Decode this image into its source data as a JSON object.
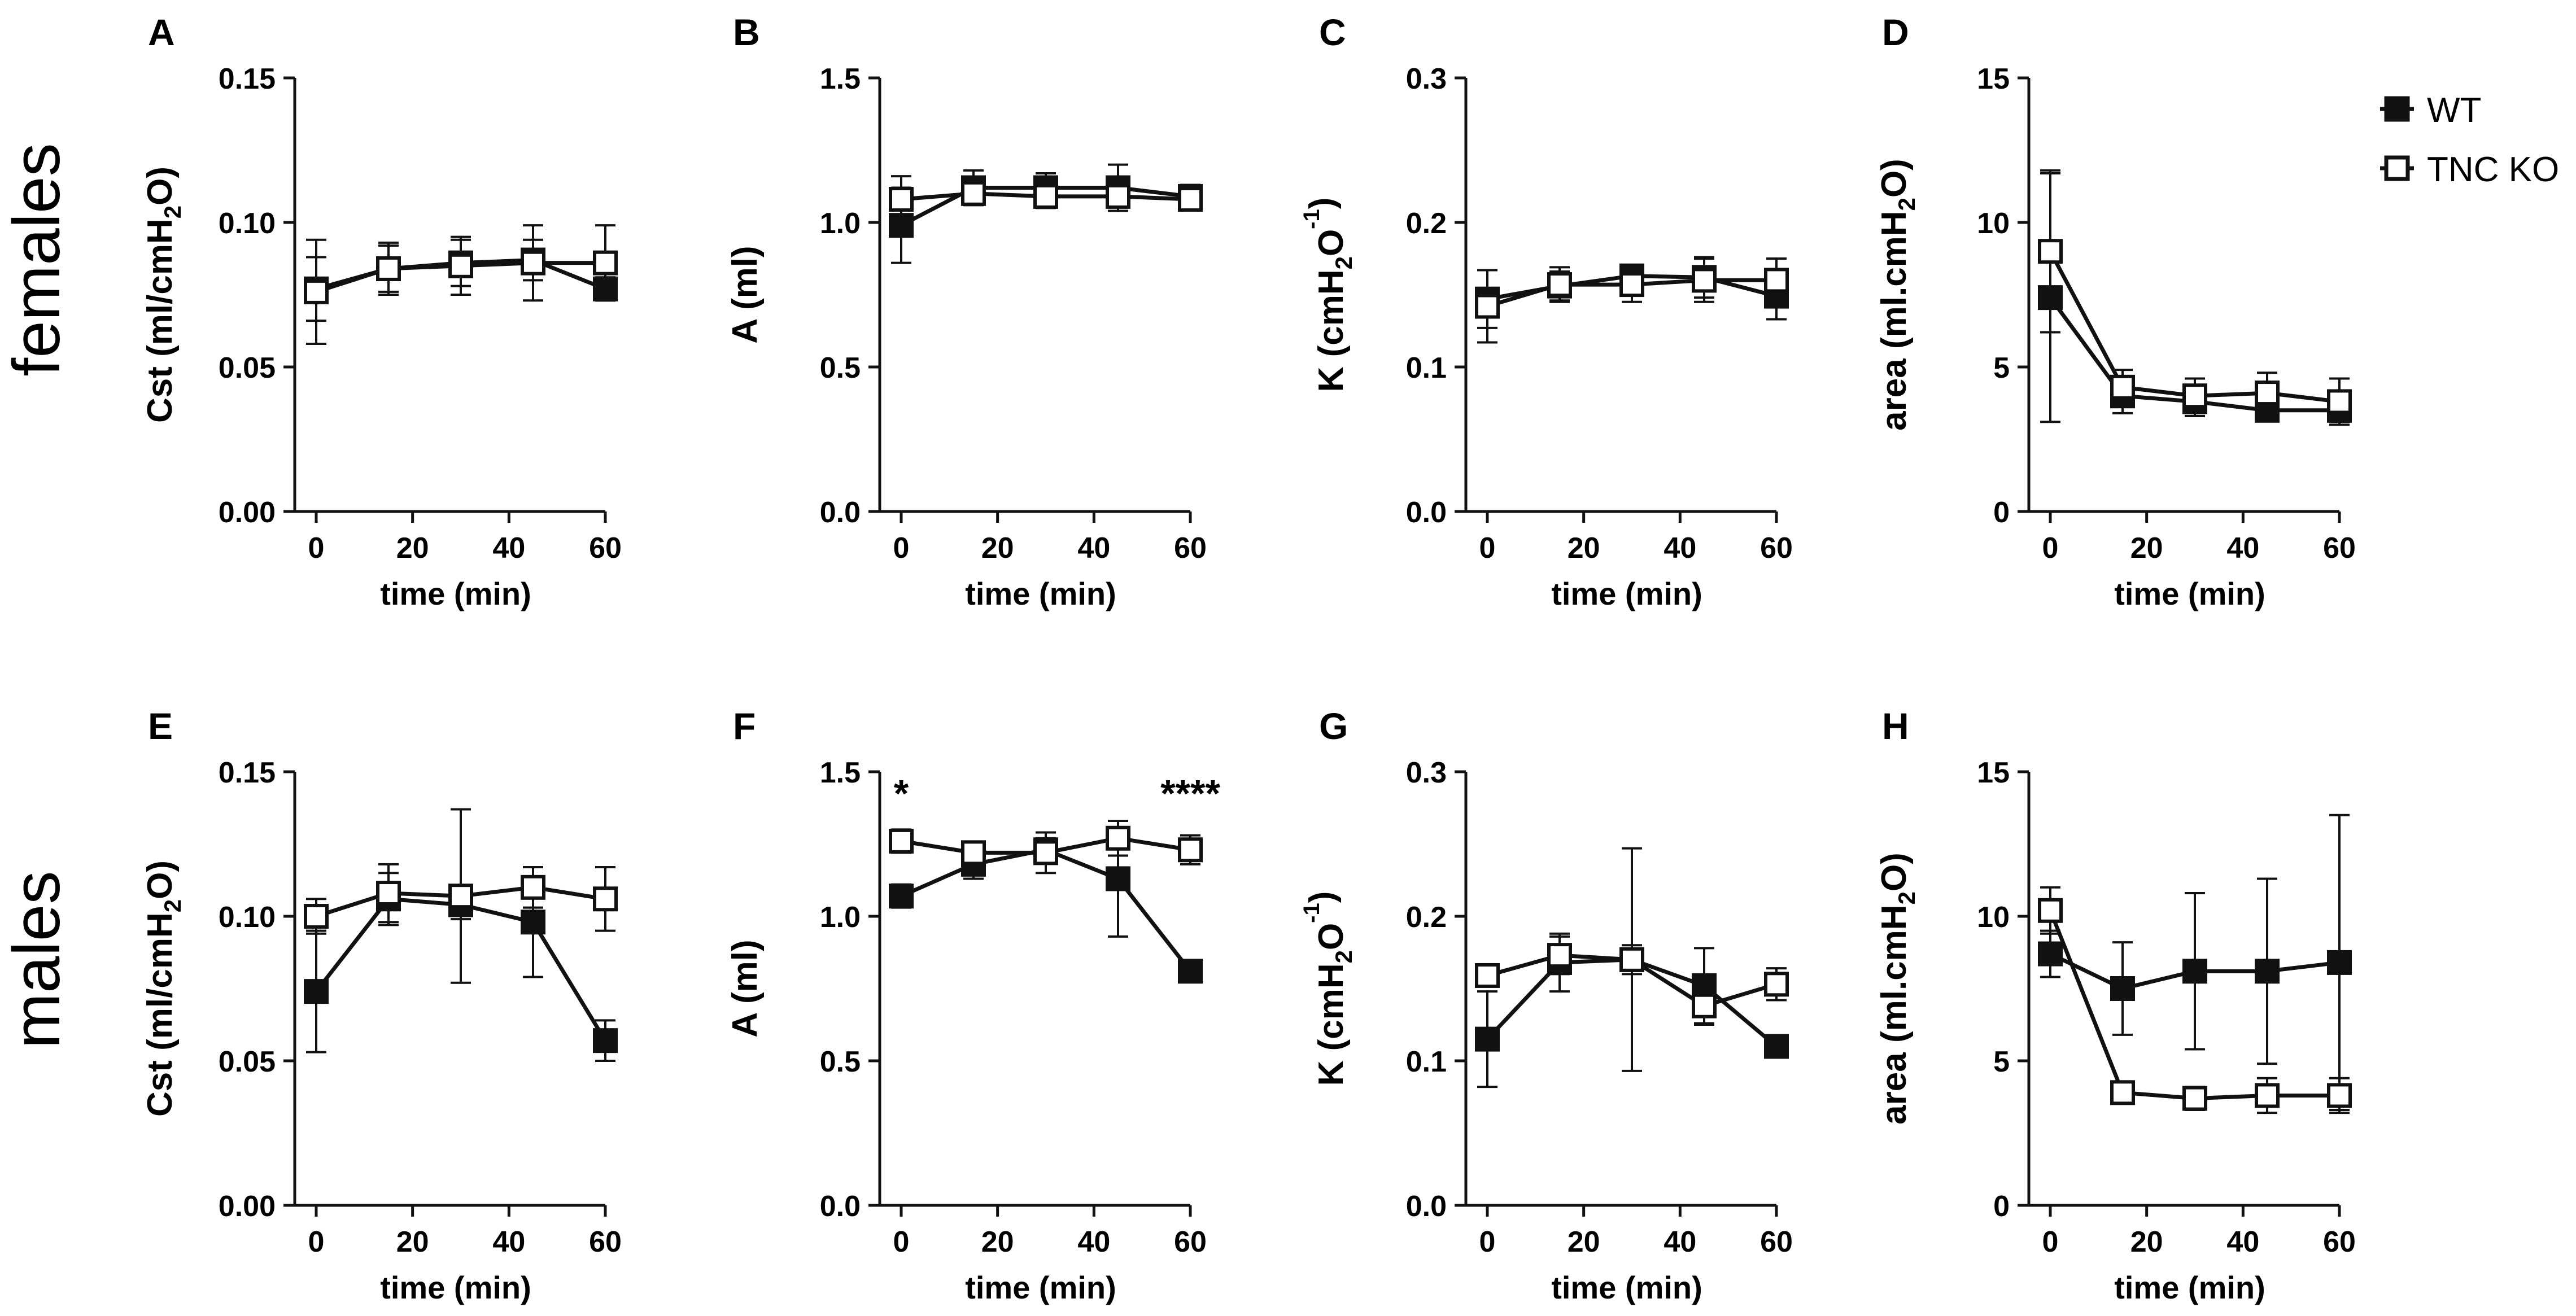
{
  "row_labels": [
    "females",
    "males"
  ],
  "legend": {
    "wt_label": "WT",
    "ko_label": "TNC KO",
    "wt_color": "#111111",
    "ko_color": "#ffffff"
  },
  "chart_data": [
    {
      "panel": "A",
      "type": "line",
      "title": "",
      "xlabel": "time (min)",
      "ylabel": "Cst (ml/cmH2O)",
      "ylabel_parts": [
        {
          "t": "Cst (ml/cmH"
        },
        {
          "t": "2",
          "sub": true
        },
        {
          "t": "O)"
        }
      ],
      "xlim": [
        0,
        60
      ],
      "ylim": [
        0,
        0.15
      ],
      "xticks": [
        0,
        20,
        40,
        60
      ],
      "xtick_labels": [
        "0",
        "20",
        "40",
        "60"
      ],
      "yticks": [
        0,
        0.05,
        0.1,
        0.15
      ],
      "ytick_labels": [
        "0.00",
        "0.05",
        "0.10",
        "0.15"
      ],
      "x": [
        0,
        15,
        30,
        45,
        60
      ],
      "series": [
        {
          "name": "WT",
          "values": [
            0.077,
            0.084,
            0.086,
            0.087,
            0.077
          ],
          "err": [
            0.011,
            0.008,
            0.008,
            0.007,
            0.004
          ]
        },
        {
          "name": "TNC KO",
          "values": [
            0.076,
            0.084,
            0.085,
            0.086,
            0.086
          ],
          "err": [
            0.018,
            0.009,
            0.01,
            0.013,
            0.013
          ]
        }
      ],
      "annotations": []
    },
    {
      "panel": "B",
      "type": "line",
      "title": "",
      "xlabel": "time (min)",
      "ylabel": "A (ml)",
      "ylabel_parts": [
        {
          "t": "A (ml)"
        }
      ],
      "xlim": [
        0,
        60
      ],
      "ylim": [
        0,
        1.5
      ],
      "xticks": [
        0,
        20,
        40,
        60
      ],
      "xtick_labels": [
        "0",
        "20",
        "40",
        "60"
      ],
      "yticks": [
        0,
        0.5,
        1.0,
        1.5
      ],
      "ytick_labels": [
        "0.0",
        "0.5",
        "1.0",
        "1.5"
      ],
      "x": [
        0,
        15,
        30,
        45,
        60
      ],
      "series": [
        {
          "name": "WT",
          "values": [
            0.99,
            1.12,
            1.12,
            1.12,
            1.09
          ],
          "err": [
            0.13,
            0.06,
            0.05,
            0.08,
            0.04
          ]
        },
        {
          "name": "TNC KO",
          "values": [
            1.08,
            1.1,
            1.09,
            1.09,
            1.08
          ],
          "err": [
            0.08,
            0.04,
            0.04,
            0.05,
            0.03
          ]
        }
      ],
      "annotations": []
    },
    {
      "panel": "C",
      "type": "line",
      "title": "",
      "xlabel": "time (min)",
      "ylabel": "K (cmH2O-1)",
      "ylabel_parts": [
        {
          "t": "K  (cmH"
        },
        {
          "t": "2",
          "sub": true
        },
        {
          "t": "O"
        },
        {
          "t": "-1",
          "sup": true
        },
        {
          "t": ")"
        }
      ],
      "xlim": [
        0,
        60
      ],
      "ylim": [
        0,
        0.3
      ],
      "xticks": [
        0,
        20,
        40,
        60
      ],
      "xtick_labels": [
        "0",
        "20",
        "40",
        "60"
      ],
      "yticks": [
        0,
        0.1,
        0.2,
        0.3
      ],
      "ytick_labels": [
        "0.0",
        "0.1",
        "0.2",
        "0.3"
      ],
      "x": [
        0,
        15,
        30,
        45,
        60
      ],
      "series": [
        {
          "name": "WT",
          "values": [
            0.147,
            0.156,
            0.163,
            0.162,
            0.149
          ],
          "err": [
            0.02,
            0.01,
            0.006,
            0.014,
            0.016
          ]
        },
        {
          "name": "TNC KO",
          "values": [
            0.142,
            0.157,
            0.157,
            0.16,
            0.16
          ],
          "err": [
            0.025,
            0.012,
            0.012,
            0.015,
            0.015
          ]
        }
      ],
      "annotations": []
    },
    {
      "panel": "D",
      "type": "line",
      "title": "",
      "xlabel": "time (min)",
      "ylabel": "area (ml.cmH2O)",
      "ylabel_parts": [
        {
          "t": "area (ml.cmH"
        },
        {
          "t": "2",
          "sub": true
        },
        {
          "t": "O)"
        }
      ],
      "xlim": [
        0,
        60
      ],
      "ylim": [
        0,
        15
      ],
      "xticks": [
        0,
        20,
        40,
        60
      ],
      "xtick_labels": [
        "0",
        "20",
        "40",
        "60"
      ],
      "yticks": [
        0,
        5,
        10,
        15
      ],
      "ytick_labels": [
        "0",
        "5",
        "10",
        "15"
      ],
      "x": [
        0,
        15,
        30,
        45,
        60
      ],
      "series": [
        {
          "name": "WT",
          "values": [
            7.4,
            4.0,
            3.8,
            3.5,
            3.5
          ],
          "err": [
            4.3,
            0.6,
            0.5,
            0.3,
            0.4
          ]
        },
        {
          "name": "TNC KO",
          "values": [
            9.0,
            4.3,
            4.0,
            4.1,
            3.8
          ],
          "err": [
            2.8,
            0.6,
            0.6,
            0.7,
            0.8
          ]
        }
      ],
      "annotations": []
    },
    {
      "panel": "E",
      "type": "line",
      "title": "",
      "xlabel": "time (min)",
      "ylabel": "Cst (ml/cmH2O)",
      "ylabel_parts": [
        {
          "t": "Cst (ml/cmH"
        },
        {
          "t": "2",
          "sub": true
        },
        {
          "t": "O)"
        }
      ],
      "xlim": [
        0,
        60
      ],
      "ylim": [
        0,
        0.15
      ],
      "xticks": [
        0,
        20,
        40,
        60
      ],
      "xtick_labels": [
        "0",
        "20",
        "40",
        "60"
      ],
      "yticks": [
        0,
        0.05,
        0.1,
        0.15
      ],
      "ytick_labels": [
        "0.00",
        "0.05",
        "0.10",
        "0.15"
      ],
      "x": [
        0,
        15,
        30,
        45,
        60
      ],
      "series": [
        {
          "name": "WT",
          "values": [
            0.074,
            0.106,
            0.104,
            0.098,
            0.057
          ],
          "err": [
            0.021,
            0.009,
            0.005,
            0.019,
            0.007
          ]
        },
        {
          "name": "TNC KO",
          "values": [
            0.1,
            0.108,
            0.107,
            0.11,
            0.106
          ],
          "err": [
            0.006,
            0.01,
            0.03,
            0.007,
            0.011
          ]
        }
      ],
      "annotations": []
    },
    {
      "panel": "F",
      "type": "line",
      "title": "",
      "xlabel": "time (min)",
      "ylabel": "A (ml)",
      "ylabel_parts": [
        {
          "t": "A (ml)"
        }
      ],
      "xlim": [
        0,
        60
      ],
      "ylim": [
        0,
        1.5
      ],
      "xticks": [
        0,
        20,
        40,
        60
      ],
      "xtick_labels": [
        "0",
        "20",
        "40",
        "60"
      ],
      "yticks": [
        0,
        0.5,
        1.0,
        1.5
      ],
      "ytick_labels": [
        "0.0",
        "0.5",
        "1.0",
        "1.5"
      ],
      "x": [
        0,
        15,
        30,
        45,
        60
      ],
      "series": [
        {
          "name": "WT",
          "values": [
            1.07,
            1.18,
            1.23,
            1.13,
            0.81
          ],
          "err": [
            0.04,
            0.05,
            0.04,
            0.2,
            0.02
          ]
        },
        {
          "name": "TNC KO",
          "values": [
            1.26,
            1.22,
            1.22,
            1.27,
            1.23
          ],
          "err": [
            0.04,
            0.03,
            0.07,
            0.06,
            0.05
          ]
        }
      ],
      "annotations": [
        {
          "text": "*",
          "x": 0,
          "y": 1.38
        },
        {
          "text": "****",
          "x": 60,
          "y": 1.38
        }
      ]
    },
    {
      "panel": "G",
      "type": "line",
      "title": "",
      "xlabel": "time (min)",
      "ylabel": "K (cmH2O-1)",
      "ylabel_parts": [
        {
          "t": "K (cmH"
        },
        {
          "t": "2",
          "sub": true
        },
        {
          "t": "O"
        },
        {
          "t": "-1",
          "sup": true
        },
        {
          "t": ")"
        }
      ],
      "xlim": [
        0,
        60
      ],
      "ylim": [
        0,
        0.3
      ],
      "xticks": [
        0,
        20,
        40,
        60
      ],
      "xtick_labels": [
        "0",
        "20",
        "40",
        "60"
      ],
      "yticks": [
        0,
        0.1,
        0.2,
        0.3
      ],
      "ytick_labels": [
        "0.0",
        "0.1",
        "0.2",
        "0.3"
      ],
      "x": [
        0,
        15,
        30,
        45,
        60
      ],
      "series": [
        {
          "name": "WT",
          "values": [
            0.115,
            0.168,
            0.17,
            0.152,
            0.11
          ],
          "err": [
            0.033,
            0.02,
            0.01,
            0.026,
            0.004
          ]
        },
        {
          "name": "TNC KO",
          "values": [
            0.159,
            0.173,
            0.17,
            0.138,
            0.153
          ],
          "err": [
            0.007,
            0.013,
            0.077,
            0.013,
            0.011
          ]
        }
      ],
      "annotations": []
    },
    {
      "panel": "H",
      "type": "line",
      "title": "",
      "xlabel": "time (min)",
      "ylabel": "area (ml.cmH2O)",
      "ylabel_parts": [
        {
          "t": "area (ml.cmH"
        },
        {
          "t": "2",
          "sub": true
        },
        {
          "t": "O)"
        }
      ],
      "xlim": [
        0,
        60
      ],
      "ylim": [
        0,
        15
      ],
      "xticks": [
        0,
        20,
        40,
        60
      ],
      "xtick_labels": [
        "0",
        "20",
        "40",
        "60"
      ],
      "yticks": [
        0,
        5,
        10,
        15
      ],
      "ytick_labels": [
        "0",
        "5",
        "10",
        "15"
      ],
      "x": [
        0,
        15,
        30,
        45,
        60
      ],
      "series": [
        {
          "name": "WT",
          "values": [
            8.7,
            7.5,
            8.1,
            8.1,
            8.4
          ],
          "err": [
            0.8,
            1.6,
            2.7,
            3.2,
            5.1
          ]
        },
        {
          "name": "TNC KO",
          "values": [
            10.2,
            3.9,
            3.7,
            3.8,
            3.8
          ],
          "err": [
            0.8,
            0.2,
            0.4,
            0.6,
            0.6
          ]
        }
      ],
      "annotations": []
    }
  ]
}
